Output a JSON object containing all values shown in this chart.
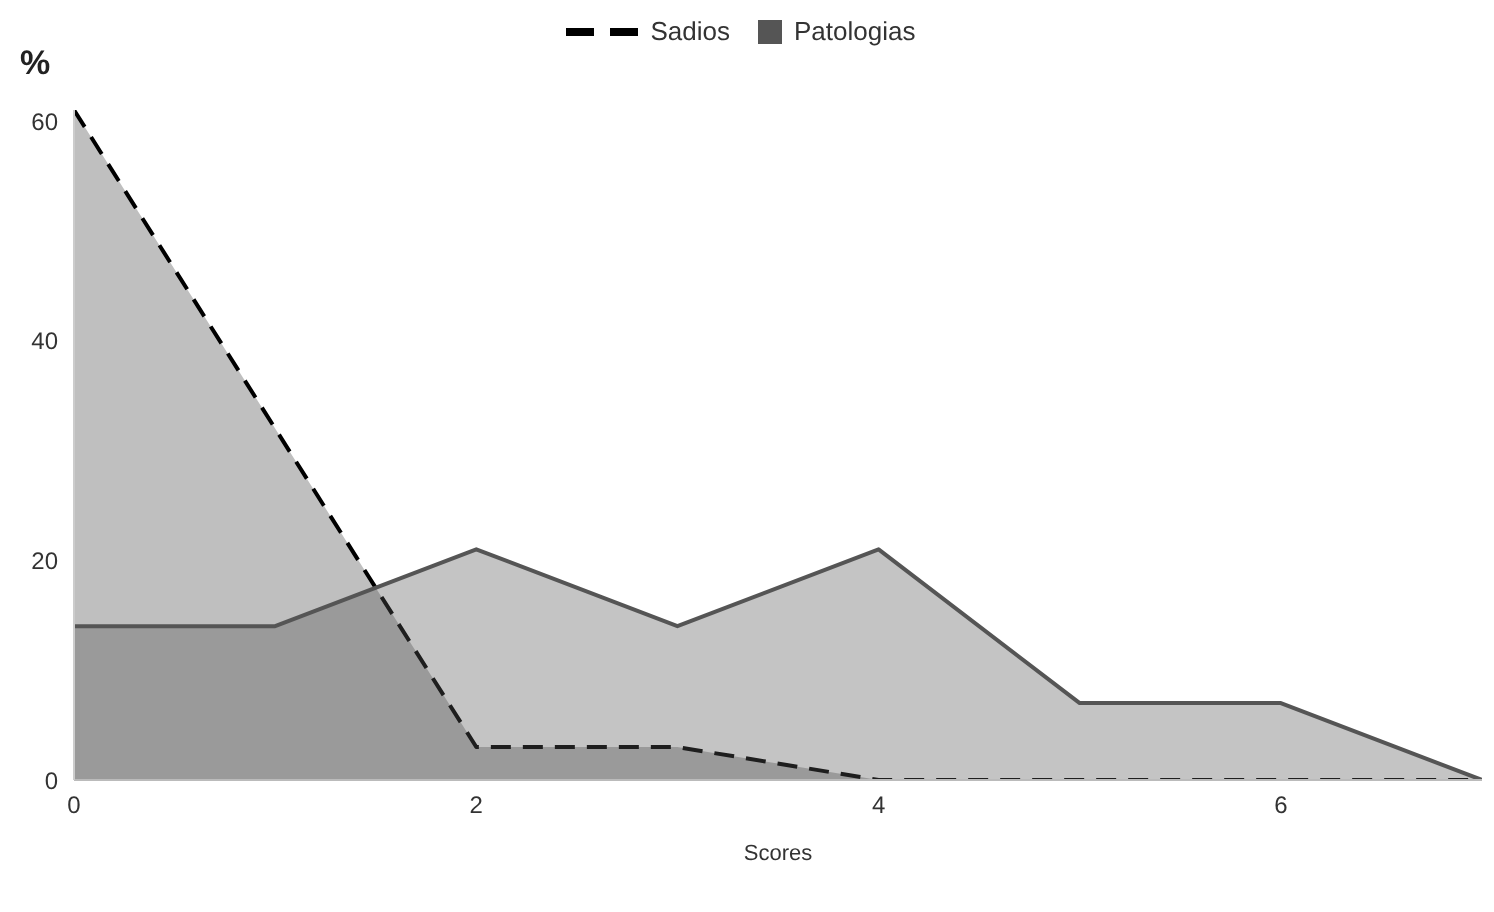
{
  "chart_data": {
    "type": "area",
    "xlabel": "Scores",
    "ylabel": "%",
    "x": [
      0,
      1,
      2,
      3,
      4,
      5,
      6,
      7
    ],
    "series": [
      {
        "name": "Sadios",
        "color": "#000000",
        "line_style": "dashed",
        "values": [
          61,
          32,
          3,
          3,
          0,
          0,
          0,
          0
        ]
      },
      {
        "name": "Patologias",
        "color": "#555555",
        "line_style": "solid",
        "values": [
          14,
          14,
          21,
          14,
          21,
          7,
          7,
          0
        ]
      }
    ],
    "xlim": [
      0,
      7
    ],
    "xticks": [
      0,
      2,
      4,
      6
    ],
    "ylim": [
      0,
      61
    ],
    "yticks": [
      0,
      20,
      40,
      60
    ],
    "legend": "top",
    "grid": false
  }
}
